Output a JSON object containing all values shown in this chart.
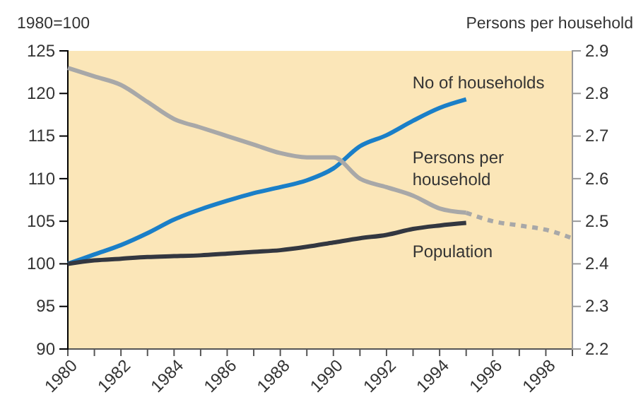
{
  "chart_data": {
    "type": "line",
    "ylabel": "1980=100",
    "y2label": "Persons per household",
    "xlim": [
      1980,
      1999
    ],
    "xticks": [
      1980,
      {
        "value": 1981,
        "label": null
      },
      1982,
      {
        "value": 1983,
        "label": null
      },
      1984,
      {
        "value": 1985,
        "label": null
      },
      1986,
      {
        "value": 1987,
        "label": null
      },
      1988,
      {
        "value": 1989,
        "label": null
      },
      1990,
      {
        "value": 1991,
        "label": null
      },
      1992,
      {
        "value": 1993,
        "label": null
      },
      1994,
      {
        "value": 1995,
        "label": null
      },
      1996,
      {
        "value": 1997,
        "label": null
      },
      1998,
      {
        "value": 1999,
        "label": null
      }
    ],
    "ylim": [
      90,
      125
    ],
    "yticks": [
      90,
      95,
      100,
      105,
      110,
      115,
      120,
      125
    ],
    "y2lim": [
      2.2,
      2.9
    ],
    "y2ticks": [
      2.2,
      2.3,
      2.4,
      2.5,
      2.6,
      2.7,
      2.8,
      2.9
    ],
    "grid": false,
    "legend": false,
    "marker": "none",
    "series": [
      {
        "name": "No of households",
        "color": "#1a7fc8",
        "x": [
          1980,
          1981,
          1982,
          1983,
          1984,
          1985,
          1986,
          1987,
          1988,
          1989,
          1990,
          1991,
          1992,
          1993,
          1994,
          1995
        ],
        "values": [
          100,
          101.1,
          102.2,
          103.6,
          105.2,
          106.4,
          107.4,
          108.3,
          109.0,
          109.8,
          111.2,
          113.8,
          115.1,
          116.8,
          118.3,
          119.3
        ]
      },
      {
        "name": "Persons per household",
        "color": "#a8a8a8",
        "axis": "y2",
        "x": [
          1980,
          1981,
          1982,
          1983,
          1984,
          1985,
          1986,
          1987,
          1988,
          1989,
          1990,
          1991,
          1992,
          1993,
          1994,
          1995
        ],
        "values": [
          2.86,
          2.84,
          2.82,
          2.78,
          2.74,
          2.72,
          2.7,
          2.68,
          2.66,
          2.65,
          2.65,
          2.6,
          2.58,
          2.56,
          2.53,
          2.52
        ]
      },
      {
        "color": "#a8a8a8",
        "axis": "y2",
        "line_style": "dashed",
        "x": [
          1995,
          1996,
          1997,
          1998,
          1999
        ],
        "values": [
          2.52,
          2.5,
          2.49,
          2.48,
          2.46
        ]
      },
      {
        "name": "Population",
        "color": "#333740",
        "x": [
          1980,
          1981,
          1982,
          1983,
          1984,
          1985,
          1986,
          1987,
          1988,
          1989,
          1990,
          1991,
          1992,
          1993,
          1994,
          1995
        ],
        "values": [
          100,
          100.4,
          100.6,
          100.8,
          100.9,
          101.0,
          101.2,
          101.4,
          101.6,
          102.0,
          102.5,
          103.0,
          103.4,
          104.1,
          104.5,
          104.8
        ]
      }
    ]
  }
}
